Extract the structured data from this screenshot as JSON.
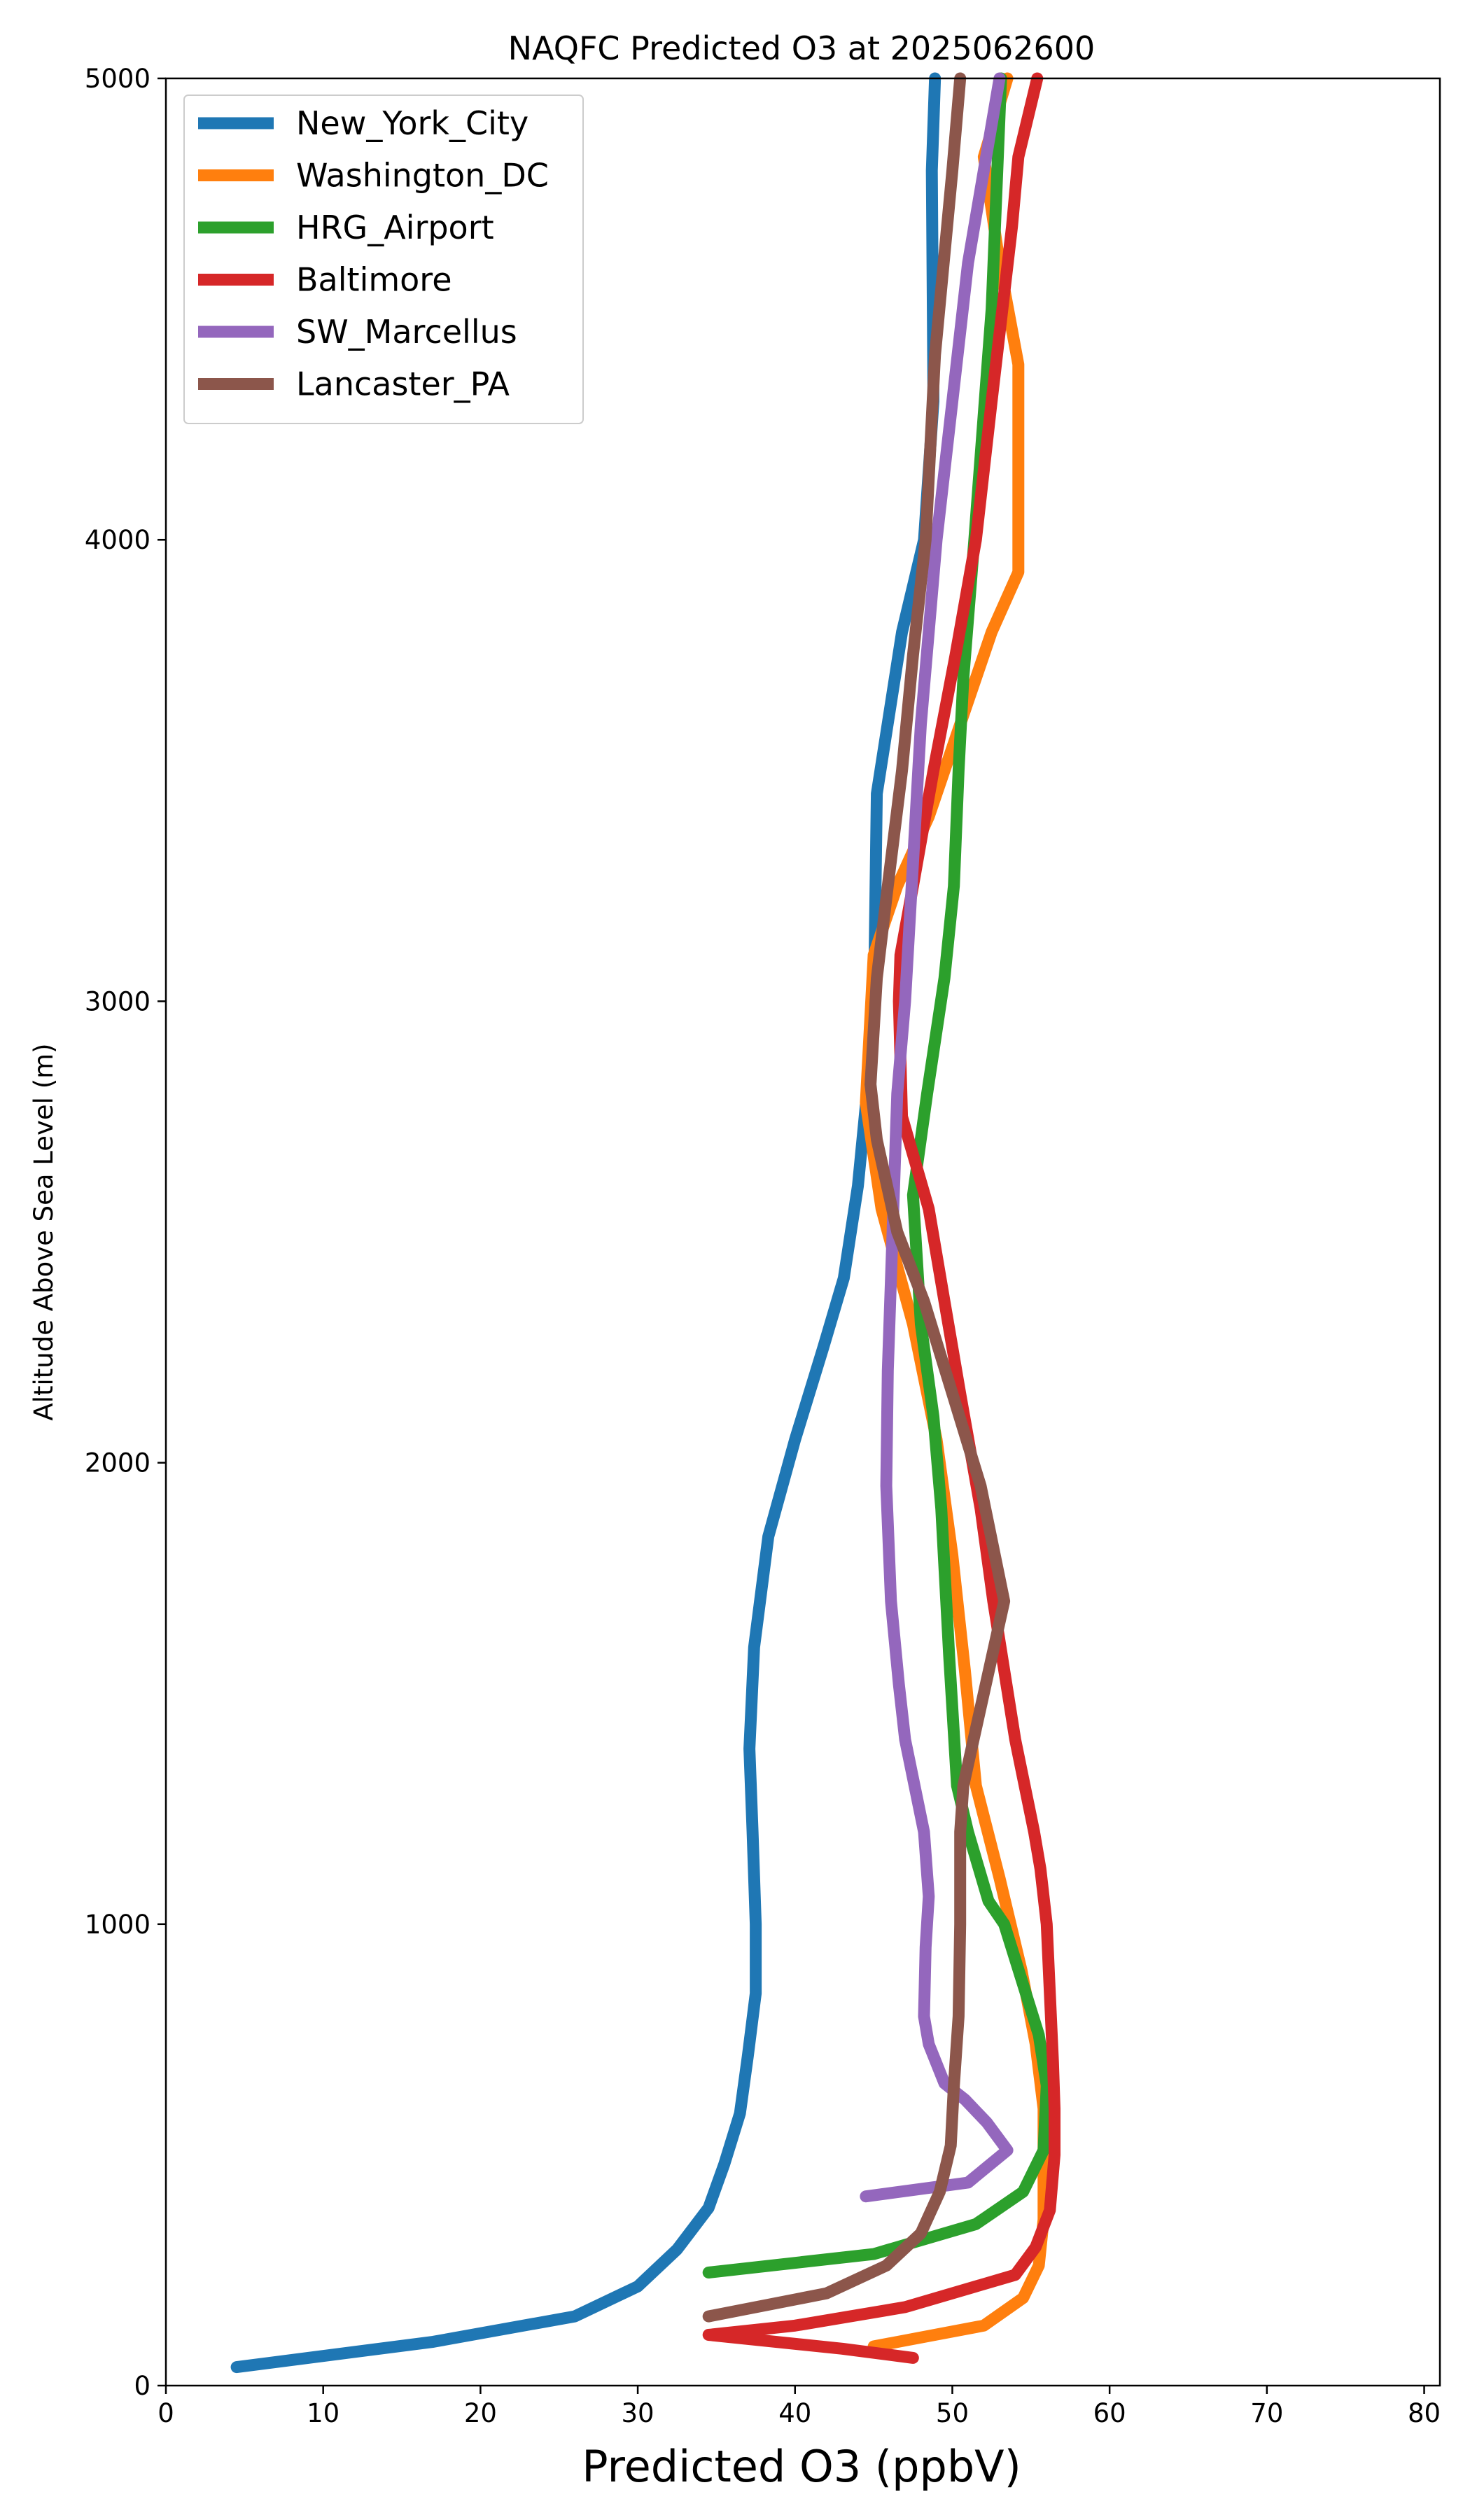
{
  "chart_data": {
    "type": "line",
    "title": "NAQFC Predicted O3 at 2025062600",
    "xlabel": "Predicted O3 (ppbV)",
    "ylabel": "Altitude Above Sea Level (m)",
    "xlim": [
      0,
      81
    ],
    "ylim": [
      0,
      5000
    ],
    "xticks": [
      0,
      10,
      20,
      30,
      40,
      50,
      60,
      70,
      80
    ],
    "yticks": [
      0,
      1000,
      2000,
      3000,
      4000,
      5000
    ],
    "grid": false,
    "legend_position": "upper-left",
    "series": [
      {
        "name": "New_York_City",
        "color": "#1f77b4",
        "points": [
          [
            4.5,
            40
          ],
          [
            17,
            95
          ],
          [
            26,
            150
          ],
          [
            30,
            215
          ],
          [
            32.5,
            295
          ],
          [
            34.5,
            385
          ],
          [
            35.5,
            480
          ],
          [
            36.5,
            590
          ],
          [
            37,
            715
          ],
          [
            37.5,
            850
          ],
          [
            37.5,
            1000
          ],
          [
            37.3,
            1200
          ],
          [
            37.1,
            1380
          ],
          [
            37.4,
            1600
          ],
          [
            38.3,
            1840
          ],
          [
            40,
            2050
          ],
          [
            41.8,
            2250
          ],
          [
            43.1,
            2400
          ],
          [
            44,
            2600
          ],
          [
            45,
            2950
          ],
          [
            45.2,
            3450
          ],
          [
            46.8,
            3800
          ],
          [
            48.2,
            4000
          ],
          [
            48.8,
            4300
          ],
          [
            48.7,
            4800
          ],
          [
            48.9,
            5000
          ]
        ]
      },
      {
        "name": "Washington_DC",
        "color": "#ff7f0e",
        "points": [
          [
            45,
            85
          ],
          [
            52,
            130
          ],
          [
            54.5,
            190
          ],
          [
            55.5,
            260
          ],
          [
            55.8,
            360
          ],
          [
            55.8,
            470
          ],
          [
            55.8,
            600
          ],
          [
            55.3,
            740
          ],
          [
            54.4,
            900
          ],
          [
            53,
            1100
          ],
          [
            51.5,
            1300
          ],
          [
            50.8,
            1550
          ],
          [
            50,
            1800
          ],
          [
            49,
            2050
          ],
          [
            47.5,
            2300
          ],
          [
            45.5,
            2550
          ],
          [
            44.5,
            2780
          ],
          [
            45,
            3100
          ],
          [
            46.5,
            3250
          ],
          [
            48.5,
            3400
          ],
          [
            50.5,
            3600
          ],
          [
            52.5,
            3800
          ],
          [
            54.2,
            3930
          ],
          [
            54.2,
            4150
          ],
          [
            54.2,
            4380
          ],
          [
            53,
            4600
          ],
          [
            52,
            4830
          ],
          [
            53.5,
            5000
          ]
        ]
      },
      {
        "name": "HRG_Airport",
        "color": "#2ca02c",
        "points": [
          [
            34.5,
            245
          ],
          [
            45,
            285
          ],
          [
            51.5,
            350
          ],
          [
            54.5,
            420
          ],
          [
            55.8,
            510
          ],
          [
            56,
            650
          ],
          [
            55.5,
            760
          ],
          [
            53.3,
            1000
          ],
          [
            52.3,
            1050
          ],
          [
            51,
            1200
          ],
          [
            50.3,
            1300
          ],
          [
            49.8,
            1580
          ],
          [
            49.3,
            1900
          ],
          [
            48.8,
            2100
          ],
          [
            48,
            2300
          ],
          [
            47.5,
            2580
          ],
          [
            48.4,
            2800
          ],
          [
            49.5,
            3050
          ],
          [
            50.1,
            3250
          ],
          [
            50.4,
            3500
          ],
          [
            50.7,
            3700
          ],
          [
            51.4,
            4000
          ],
          [
            52.5,
            4500
          ],
          [
            53.1,
            5000
          ]
        ]
      },
      {
        "name": "Baltimore",
        "color": "#d62728",
        "points": [
          [
            47.5,
            60
          ],
          [
            43,
            80
          ],
          [
            34.5,
            110
          ],
          [
            40,
            130
          ],
          [
            47,
            170
          ],
          [
            54,
            240
          ],
          [
            55.3,
            300
          ],
          [
            56.2,
            380
          ],
          [
            56.5,
            500
          ],
          [
            56.5,
            600
          ],
          [
            56.4,
            700
          ],
          [
            56.2,
            850
          ],
          [
            56,
            1000
          ],
          [
            55.6,
            1120
          ],
          [
            55.2,
            1200
          ],
          [
            54,
            1400
          ],
          [
            52.6,
            1700
          ],
          [
            51.8,
            1900
          ],
          [
            50.5,
            2150
          ],
          [
            49.5,
            2350
          ],
          [
            48.5,
            2550
          ],
          [
            46.8,
            2750
          ],
          [
            46.6,
            3000
          ],
          [
            46.7,
            3100
          ],
          [
            47.5,
            3250
          ],
          [
            48.8,
            3500
          ],
          [
            50.2,
            3750
          ],
          [
            51.5,
            4000
          ],
          [
            52.5,
            4300
          ],
          [
            53.8,
            4680
          ],
          [
            54.2,
            4830
          ],
          [
            55.4,
            5000
          ]
        ]
      },
      {
        "name": "SW_Marcellus",
        "color": "#9467bd",
        "points": [
          [
            44.5,
            410
          ],
          [
            51,
            440
          ],
          [
            53.5,
            510
          ],
          [
            52.2,
            570
          ],
          [
            50.8,
            620
          ],
          [
            49.5,
            655
          ],
          [
            48.5,
            740
          ],
          [
            48.2,
            800
          ],
          [
            48.3,
            950
          ],
          [
            48.5,
            1060
          ],
          [
            48.2,
            1200
          ],
          [
            47,
            1400
          ],
          [
            46.6,
            1520
          ],
          [
            46.1,
            1700
          ],
          [
            45.8,
            1950
          ],
          [
            45.9,
            2200
          ],
          [
            46.2,
            2500
          ],
          [
            46.5,
            2800
          ],
          [
            47,
            3000
          ],
          [
            47.5,
            3300
          ],
          [
            48,
            3600
          ],
          [
            49,
            4000
          ],
          [
            50,
            4300
          ],
          [
            51,
            4600
          ],
          [
            52,
            4800
          ],
          [
            53,
            5000
          ]
        ]
      },
      {
        "name": "Lancaster_PA",
        "color": "#8c564b",
        "points": [
          [
            34.5,
            150
          ],
          [
            42,
            200
          ],
          [
            45.8,
            260
          ],
          [
            48,
            330
          ],
          [
            49.2,
            420
          ],
          [
            49.9,
            520
          ],
          [
            50.1,
            650
          ],
          [
            50.4,
            800
          ],
          [
            50.5,
            1000
          ],
          [
            50.5,
            1200
          ],
          [
            50.7,
            1300
          ],
          [
            53.3,
            1700
          ],
          [
            51.8,
            1950
          ],
          [
            50,
            2150
          ],
          [
            48.2,
            2350
          ],
          [
            46.5,
            2500
          ],
          [
            45.2,
            2700
          ],
          [
            44.8,
            2820
          ],
          [
            45.2,
            3050
          ],
          [
            45.9,
            3250
          ],
          [
            46.8,
            3500
          ],
          [
            47.5,
            3750
          ],
          [
            48.3,
            4000
          ],
          [
            48.9,
            4400
          ],
          [
            50,
            4800
          ],
          [
            50.5,
            5000
          ]
        ]
      }
    ]
  }
}
